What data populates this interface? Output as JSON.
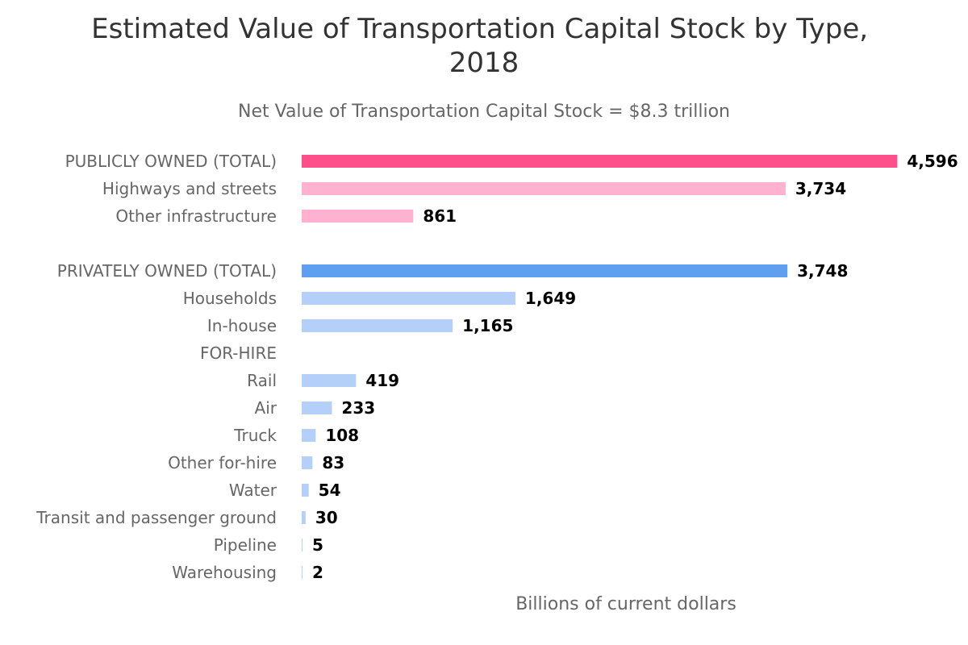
{
  "chart_data": {
    "type": "bar",
    "orientation": "horizontal",
    "title": "Estimated Value of Transportation Capital Stock by Type, 2018",
    "title_lines": [
      "Estimated Value of Transportation Capital Stock by Type,",
      "2018"
    ],
    "subtitle": "Net Value of Transportation Capital Stock = $8.3 trillion",
    "xlabel": "Billions of current dollars",
    "ylabel": "",
    "xlim": [
      0,
      4600
    ],
    "grid": false,
    "legend": "none",
    "categories": [
      "PUBLICLY OWNED (TOTAL)",
      "Highways and streets",
      "Other infrastructure",
      "",
      "PRIVATELY OWNED (TOTAL)",
      "Households",
      "In-house",
      "FOR-HIRE",
      "Rail",
      "Air",
      "Truck",
      "Other for-hire",
      "Water",
      "Transit and passenger ground",
      "Pipeline",
      "Warehousing"
    ],
    "values": [
      4596,
      3734,
      861,
      null,
      3748,
      1649,
      1165,
      null,
      419,
      233,
      108,
      83,
      54,
      30,
      5,
      2
    ],
    "value_labels": [
      "4,596",
      "3,734",
      "861",
      "",
      "3,748",
      "1,649",
      "1,165",
      "",
      "419",
      "233",
      "108",
      "83",
      "54",
      "30",
      "5",
      "2"
    ],
    "colors": [
      "#ff4f8b",
      "#ffb1cf",
      "#ffb1cf",
      "",
      "#5e9ff0",
      "#b4d0f9",
      "#b4d0f9",
      "",
      "#b4d0f9",
      "#b4d0f9",
      "#b4d0f9",
      "#b4d0f9",
      "#b4d0f9",
      "#b4d0f9",
      "#b4d0f9",
      "#b4d0f9"
    ]
  }
}
